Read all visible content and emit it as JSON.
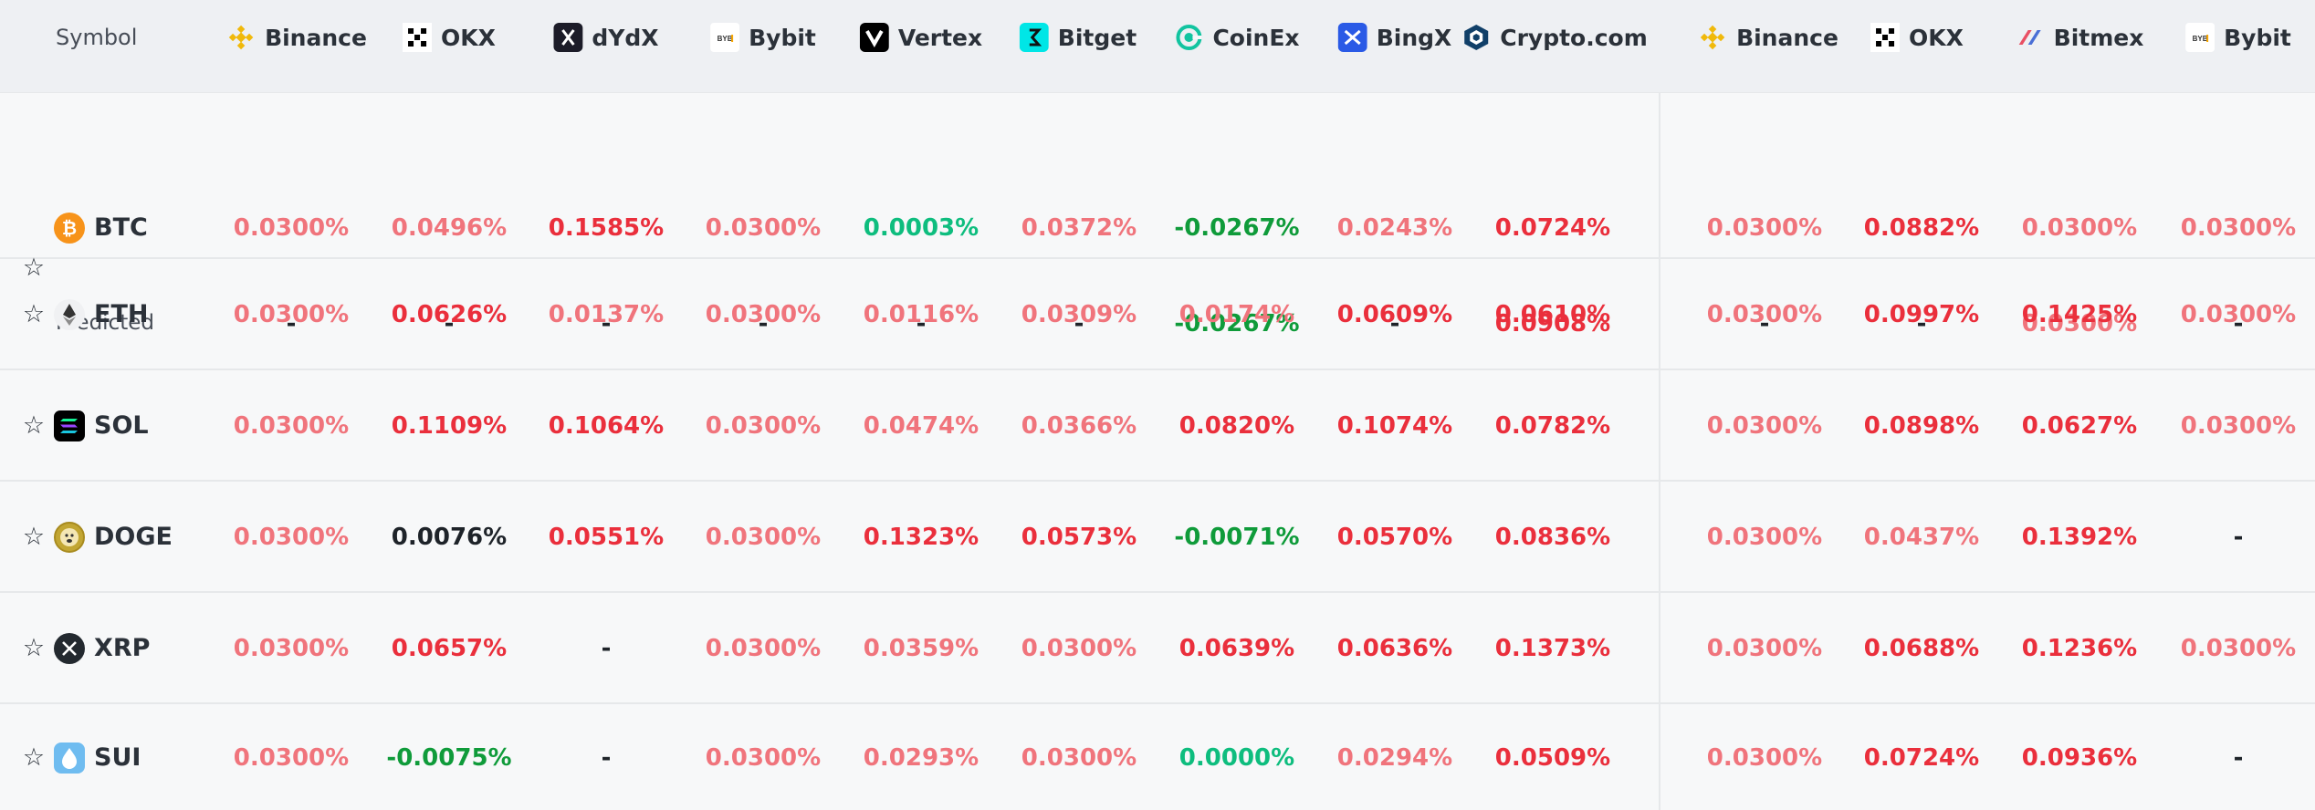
{
  "header": {
    "symbol_label": "Symbol",
    "exchanges": [
      {
        "name": "Binance",
        "icon": "binance-icon"
      },
      {
        "name": "OKX",
        "icon": "okx-icon"
      },
      {
        "name": "dYdX",
        "icon": "dydx-icon"
      },
      {
        "name": "Bybit",
        "icon": "bybit-icon"
      },
      {
        "name": "Vertex",
        "icon": "vertex-icon"
      },
      {
        "name": "Bitget",
        "icon": "bitget-icon"
      },
      {
        "name": "CoinEx",
        "icon": "coinex-icon"
      },
      {
        "name": "BingX",
        "icon": "bingx-icon"
      },
      {
        "name": "Crypto.com",
        "icon": "crypto-com-icon"
      },
      {
        "name": "Binance",
        "icon": "binance-icon"
      },
      {
        "name": "OKX",
        "icon": "okx-icon"
      },
      {
        "name": "Bitmex",
        "icon": "bitmex-icon"
      },
      {
        "name": "Bybit",
        "icon": "bybit-icon"
      }
    ]
  },
  "colors": {
    "high_positive": "#ea2f3c",
    "positive": "#f0747c",
    "negative": "#0f9b3a",
    "zero_or_low": "#0ebd7e",
    "neutral": "#1e2329"
  },
  "rows": [
    {
      "symbol": "BTC",
      "icon": "btc-icon",
      "rates": [
        "0.0300%",
        "0.0496%",
        "0.1585%",
        "0.0300%",
        "0.0003%",
        "0.0372%",
        "-0.0267%",
        "0.0243%",
        "0.0724%",
        "0.0300%",
        "0.0882%",
        "0.0300%",
        "0.0300%"
      ],
      "predicted_label": "Predicted",
      "predicted": [
        "-",
        "-",
        "-",
        "-",
        "-",
        "-",
        "-0.0267%",
        "-",
        "0.0908%",
        "-",
        "-",
        "0.0300%",
        "-"
      ]
    },
    {
      "symbol": "ETH",
      "icon": "eth-icon",
      "rates": [
        "0.0300%",
        "0.0626%",
        "0.0137%",
        "0.0300%",
        "0.0116%",
        "0.0309%",
        "0.0174%",
        "0.0609%",
        "0.0610%",
        "0.0300%",
        "0.0997%",
        "0.1425%",
        "0.0300%"
      ]
    },
    {
      "symbol": "SOL",
      "icon": "sol-icon",
      "rates": [
        "0.0300%",
        "0.1109%",
        "0.1064%",
        "0.0300%",
        "0.0474%",
        "0.0366%",
        "0.0820%",
        "0.1074%",
        "0.0782%",
        "0.0300%",
        "0.0898%",
        "0.0627%",
        "0.0300%"
      ]
    },
    {
      "symbol": "DOGE",
      "icon": "doge-icon",
      "rates": [
        "0.0300%",
        "0.0076%",
        "0.0551%",
        "0.0300%",
        "0.1323%",
        "0.0573%",
        "-0.0071%",
        "0.0570%",
        "0.0836%",
        "0.0300%",
        "0.0437%",
        "0.1392%",
        "-"
      ]
    },
    {
      "symbol": "XRP",
      "icon": "xrp-icon",
      "rates": [
        "0.0300%",
        "0.0657%",
        "-",
        "0.0300%",
        "0.0359%",
        "0.0300%",
        "0.0639%",
        "0.0636%",
        "0.1373%",
        "0.0300%",
        "0.0688%",
        "0.1236%",
        "0.0300%"
      ]
    },
    {
      "symbol": "SUI",
      "icon": "sui-icon",
      "rates": [
        "0.0300%",
        "-0.0075%",
        "-",
        "0.0300%",
        "0.0293%",
        "0.0300%",
        "0.0000%",
        "0.0294%",
        "0.0509%",
        "0.0300%",
        "0.0724%",
        "0.0936%",
        "-"
      ]
    }
  ]
}
